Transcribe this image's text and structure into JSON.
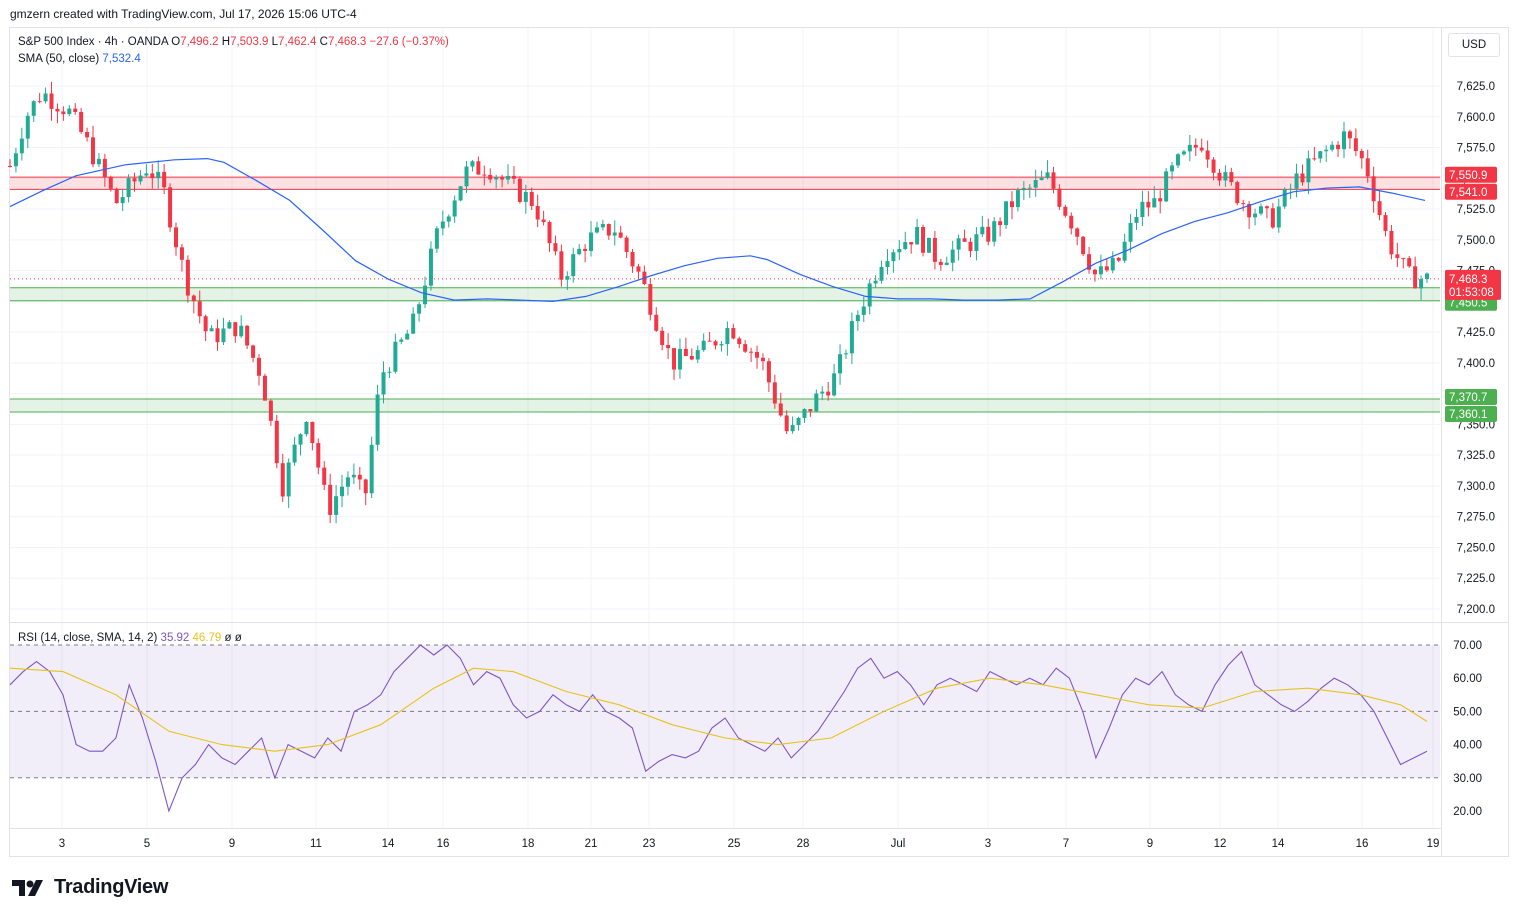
{
  "header": {
    "credit": "gmzern created with TradingView.com, Jul 17, 2026 15:06 UTC-4"
  },
  "legend": {
    "symbol": "S&P 500 Index · 4h · OANDA",
    "open_label": "O",
    "open": "7,496.2",
    "high_label": "H",
    "high": "7,503.9",
    "low_label": "L",
    "low": "7,462.4",
    "close_label": "C",
    "close": "7,468.3",
    "change": "−27.6 (−0.37%)",
    "sma_label": "SMA (50, close)",
    "sma_value": "7,532.4",
    "rsi_label": "RSI (14, close, SMA, 14, 2)",
    "rsi_value": "35.92",
    "rsi_ma_value": "46.79",
    "rsi_extra": "ø ø"
  },
  "currency": "USD",
  "brand": {
    "name": "TradingView",
    "icon": "tradingview-logo-icon"
  },
  "colors": {
    "up": "#22ab94",
    "down": "#f23645",
    "sma": "#2962ff",
    "rsi": "#7e57c2",
    "rsi_ma": "#e8c21c",
    "resistance_zone": "#f23645",
    "support_zone": "#4caf50"
  },
  "chart_data": [
    {
      "type": "candlestick",
      "title": "S&P 500 Index · 4h · OANDA",
      "x_tick_labels": [
        "3",
        "5",
        "9",
        "11",
        "14",
        "16",
        "18",
        "21",
        "23",
        "25",
        "28",
        "Jul",
        "3",
        "7",
        "9",
        "12",
        "14",
        "16",
        "19"
      ],
      "y_tick_labels": [
        "7,625.0",
        "7,600.0",
        "7,575.0",
        "7,550.0",
        "7,525.0",
        "7,500.0",
        "7,475.0",
        "7,450.0",
        "7,425.0",
        "7,400.0",
        "7,375.0",
        "7,350.0",
        "7,325.0",
        "7,300.0",
        "7,275.0",
        "7,250.0",
        "7,225.0",
        "7,200.0"
      ],
      "ylim": [
        7190,
        7660
      ],
      "grid": true,
      "zones": [
        {
          "from": 7541.0,
          "to": 7550.9,
          "color": "red",
          "label_top": "7,550.9",
          "label_bottom": "7,541.0"
        },
        {
          "from": 7450.5,
          "to": 7461.1,
          "color": "green",
          "label_top": "7,461.1",
          "label_bottom": "7,450.5"
        },
        {
          "from": 7360.1,
          "to": 7370.7,
          "color": "green",
          "label_top": "7,370.7",
          "label_bottom": "7,360.1"
        }
      ],
      "last_price": {
        "value": 7468.3,
        "label": "7,468.3",
        "countdown": "01:53:08"
      },
      "sma_path": [
        [
          0,
          7527
        ],
        [
          10,
          7540
        ],
        [
          20,
          7552
        ],
        [
          35,
          7561
        ],
        [
          50,
          7565
        ],
        [
          60,
          7566
        ],
        [
          65,
          7563
        ],
        [
          75,
          7548
        ],
        [
          85,
          7532
        ],
        [
          95,
          7508
        ],
        [
          105,
          7483
        ],
        [
          115,
          7468
        ],
        [
          125,
          7457
        ],
        [
          135,
          7451
        ],
        [
          145,
          7452
        ],
        [
          155,
          7451
        ],
        [
          165,
          7450
        ],
        [
          175,
          7454
        ],
        [
          185,
          7462
        ],
        [
          195,
          7471
        ],
        [
          205,
          7479
        ],
        [
          215,
          7485
        ],
        [
          225,
          7487
        ],
        [
          230,
          7484
        ],
        [
          240,
          7472
        ],
        [
          250,
          7462
        ],
        [
          260,
          7454
        ],
        [
          270,
          7452
        ],
        [
          280,
          7452
        ],
        [
          290,
          7451
        ],
        [
          300,
          7451
        ],
        [
          310,
          7452
        ],
        [
          320,
          7466
        ],
        [
          330,
          7481
        ],
        [
          340,
          7492
        ],
        [
          350,
          7505
        ],
        [
          360,
          7515
        ],
        [
          370,
          7522
        ],
        [
          380,
          7531
        ],
        [
          390,
          7539
        ],
        [
          400,
          7542
        ],
        [
          410,
          7543
        ],
        [
          420,
          7538
        ],
        [
          430,
          7532
        ]
      ],
      "candles_ohlc": "generated-in-script"
    },
    {
      "type": "line",
      "title": "RSI (14, close, SMA, 14, 2)",
      "y_tick_labels": [
        "70.00",
        "60.00",
        "50.00",
        "40.00",
        "30.00",
        "20.00"
      ],
      "ylim": [
        15,
        75
      ],
      "bands": {
        "upper": 70,
        "middle": 50,
        "lower": 30
      },
      "rsi_path": [
        [
          0,
          58
        ],
        [
          5,
          62
        ],
        [
          10,
          65
        ],
        [
          15,
          62
        ],
        [
          20,
          55
        ],
        [
          25,
          40
        ],
        [
          30,
          38
        ],
        [
          35,
          38
        ],
        [
          40,
          42
        ],
        [
          45,
          58
        ],
        [
          50,
          48
        ],
        [
          55,
          35
        ],
        [
          60,
          20
        ],
        [
          65,
          30
        ],
        [
          70,
          34
        ],
        [
          75,
          40
        ],
        [
          80,
          36
        ],
        [
          85,
          34
        ],
        [
          90,
          38
        ],
        [
          95,
          42
        ],
        [
          100,
          30
        ],
        [
          105,
          40
        ],
        [
          110,
          38
        ],
        [
          115,
          36
        ],
        [
          120,
          42
        ],
        [
          125,
          38
        ],
        [
          130,
          50
        ],
        [
          135,
          52
        ],
        [
          140,
          55
        ],
        [
          145,
          62
        ],
        [
          150,
          66
        ],
        [
          155,
          70
        ],
        [
          160,
          67
        ],
        [
          165,
          70
        ],
        [
          170,
          66
        ],
        [
          175,
          58
        ],
        [
          180,
          62
        ],
        [
          185,
          60
        ],
        [
          190,
          52
        ],
        [
          195,
          48
        ],
        [
          200,
          50
        ],
        [
          205,
          55
        ],
        [
          210,
          52
        ],
        [
          215,
          50
        ],
        [
          220,
          55
        ],
        [
          225,
          50
        ],
        [
          230,
          48
        ],
        [
          235,
          45
        ],
        [
          240,
          32
        ],
        [
          245,
          35
        ],
        [
          250,
          37
        ],
        [
          255,
          36
        ],
        [
          260,
          38
        ],
        [
          265,
          45
        ],
        [
          270,
          48
        ],
        [
          275,
          42
        ],
        [
          280,
          40
        ],
        [
          285,
          38
        ],
        [
          290,
          42
        ],
        [
          295,
          36
        ],
        [
          300,
          40
        ],
        [
          305,
          44
        ],
        [
          310,
          50
        ],
        [
          315,
          56
        ],
        [
          320,
          63
        ],
        [
          325,
          66
        ],
        [
          330,
          60
        ],
        [
          335,
          62
        ],
        [
          340,
          58
        ],
        [
          345,
          52
        ],
        [
          350,
          58
        ],
        [
          355,
          60
        ],
        [
          360,
          58
        ],
        [
          365,
          56
        ],
        [
          370,
          62
        ],
        [
          375,
          60
        ],
        [
          380,
          58
        ],
        [
          385,
          60
        ],
        [
          390,
          58
        ],
        [
          395,
          63
        ],
        [
          400,
          60
        ],
        [
          405,
          50
        ],
        [
          410,
          36
        ],
        [
          415,
          45
        ],
        [
          420,
          55
        ],
        [
          425,
          60
        ],
        [
          430,
          58
        ],
        [
          435,
          62
        ],
        [
          440,
          55
        ],
        [
          445,
          52
        ],
        [
          450,
          50
        ],
        [
          455,
          58
        ],
        [
          460,
          64
        ],
        [
          465,
          68
        ],
        [
          470,
          58
        ],
        [
          475,
          55
        ],
        [
          480,
          52
        ],
        [
          485,
          50
        ],
        [
          490,
          53
        ],
        [
          495,
          57
        ],
        [
          500,
          60
        ],
        [
          505,
          58
        ],
        [
          510,
          55
        ],
        [
          515,
          50
        ],
        [
          520,
          42
        ],
        [
          525,
          34
        ],
        [
          530,
          36
        ],
        [
          535,
          38
        ]
      ],
      "rsi_ma_path": [
        [
          0,
          63
        ],
        [
          20,
          62
        ],
        [
          40,
          55
        ],
        [
          60,
          44
        ],
        [
          80,
          40
        ],
        [
          100,
          38
        ],
        [
          120,
          40
        ],
        [
          140,
          46
        ],
        [
          160,
          57
        ],
        [
          175,
          63
        ],
        [
          190,
          62
        ],
        [
          210,
          56
        ],
        [
          230,
          52
        ],
        [
          250,
          46
        ],
        [
          270,
          42
        ],
        [
          290,
          40
        ],
        [
          310,
          42
        ],
        [
          330,
          50
        ],
        [
          350,
          57
        ],
        [
          370,
          60
        ],
        [
          390,
          58
        ],
        [
          410,
          55
        ],
        [
          430,
          52
        ],
        [
          450,
          51
        ],
        [
          470,
          56
        ],
        [
          490,
          57
        ],
        [
          510,
          55
        ],
        [
          525,
          52
        ],
        [
          535,
          47
        ]
      ]
    }
  ]
}
